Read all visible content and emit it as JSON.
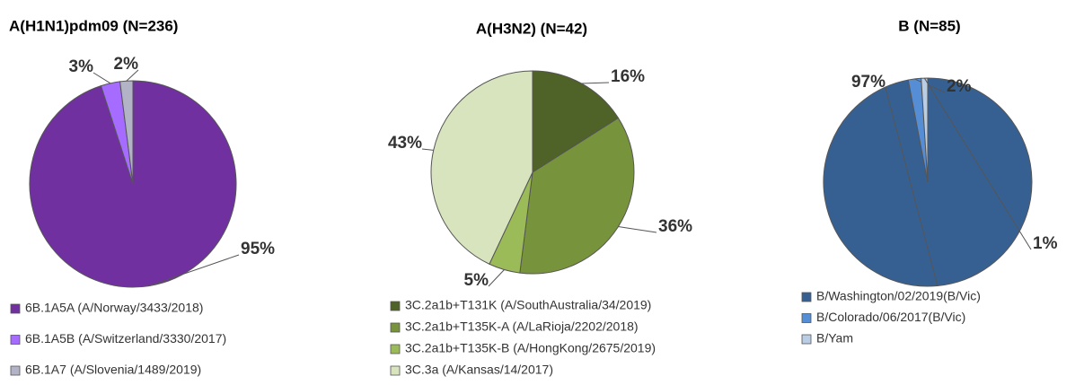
{
  "chart_data": [
    {
      "type": "pie",
      "title": "A(H1N1)pdm09 (N=236)",
      "categories": [
        "6B.1A5A (A/Norway/3433/2018)",
        "6B.1A5B (A/Switzerland/3330/2017)",
        "6B.1A7 (A/Slovenia/1489/2019)"
      ],
      "values": [
        95,
        3,
        2
      ],
      "value_labels": [
        "95%",
        "3%",
        "2%"
      ],
      "colors": [
        "#7030a0",
        "#a66bff",
        "#b3b3c8"
      ]
    },
    {
      "type": "pie",
      "title": "A(H3N2) (N=42)",
      "categories": [
        "3C.2a1b+T131K (A/SouthAustralia/34/2019)",
        "3C.2a1b+T135K-A (A/LaRioja/2202/2018)",
        "3C.2a1b+T135K-B (A/HongKong/2675/2019)",
        "3C.3a (A/Kansas/14/2017)"
      ],
      "values": [
        16,
        36,
        5,
        43
      ],
      "value_labels": [
        "16%",
        "36%",
        "5%",
        "43%"
      ],
      "colors": [
        "#4f6228",
        "#77933c",
        "#9bbb59",
        "#d7e4bd"
      ]
    },
    {
      "type": "pie",
      "title": "B (N=85)",
      "categories": [
        "B/Washington/02/2019(B/Vic)",
        "B/Colorado/06/2017(B/Vic)",
        "B/Yam"
      ],
      "values": [
        97,
        2,
        1
      ],
      "value_labels": [
        "97%",
        "2%",
        "1%"
      ],
      "colors": [
        "#376092",
        "#558ed5",
        "#b9cde5"
      ]
    }
  ]
}
